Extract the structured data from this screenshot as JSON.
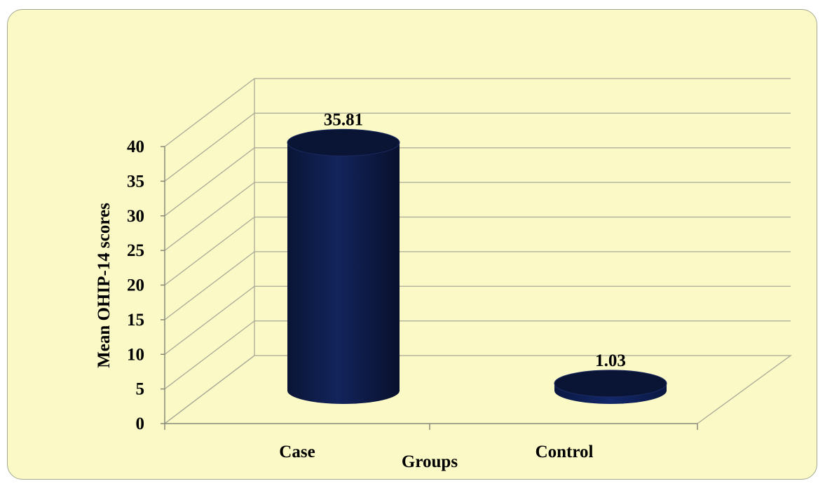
{
  "chart_data": {
    "type": "bar",
    "style": "3d-cylinder",
    "categories": [
      "Case",
      "Control"
    ],
    "values": [
      35.81,
      1.03
    ],
    "value_labels": [
      "35.81",
      "1.03"
    ],
    "title": "",
    "xlabel": "Groups",
    "ylabel": "Mean OHIP-14 scores",
    "ylim": [
      0,
      40
    ],
    "y_ticks": [
      "0",
      "5",
      "10",
      "15",
      "20",
      "25",
      "30",
      "35",
      "40"
    ],
    "grid": true,
    "legend": "none",
    "colors": {
      "background": "#fbf9c5",
      "bar": "#0e1c4a",
      "bar_top": "#0a1535",
      "grid": "#a8aa98",
      "border": "#a5a890"
    }
  }
}
